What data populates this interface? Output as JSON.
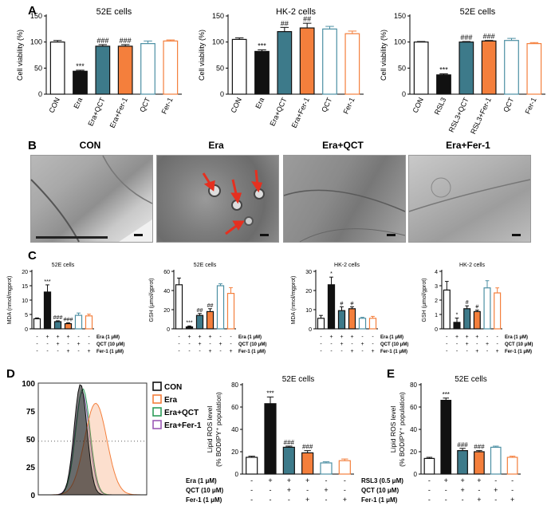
{
  "panel_labels": {
    "A": "A",
    "B": "B",
    "C": "C",
    "D": "D",
    "E": "E"
  },
  "colors": {
    "con": "#ffffff",
    "drug": "#111111",
    "qct": "#3d7a8a",
    "fer1": "#f47f3c",
    "qct_only": "#4c8fa3",
    "fer_only": "#f47f3c"
  },
  "em": {
    "titles": [
      "CON",
      "Era",
      "Era+QCT",
      "Era+Fer-1"
    ]
  },
  "flow": {
    "ylim": [
      0,
      100
    ],
    "yticks": [
      "0",
      "25",
      "50",
      "75",
      "100"
    ],
    "legend": [
      {
        "label": "CON",
        "color": "#111111"
      },
      {
        "label": "Era",
        "color": "#f47f3c"
      },
      {
        "label": "Era+QCT",
        "color": "#2e9c5a"
      },
      {
        "label": "Era+Fer-1",
        "color": "#9b59b6"
      }
    ]
  },
  "chart_data": [
    {
      "id": "A1",
      "type": "bar",
      "title": "52E cells",
      "ylabel": "Cell viability (%)",
      "ylim": [
        0,
        150
      ],
      "yticks": [
        "0",
        "50",
        "100",
        "150"
      ],
      "categories": [
        "CON",
        "Era",
        "Era+QCT",
        "Era+Fer-1",
        "QCT",
        "Fer-1"
      ],
      "values": [
        100,
        44,
        92,
        92,
        97,
        102
      ],
      "errors": [
        3,
        2,
        3,
        3,
        5,
        2
      ],
      "annotations": [
        "",
        "***",
        "###",
        "###",
        "",
        ""
      ]
    },
    {
      "id": "A2",
      "type": "bar",
      "title": "HK-2 cells",
      "ylabel": "Cell viability (%)",
      "ylim": [
        0,
        150
      ],
      "yticks": [
        "0",
        "50",
        "100",
        "150"
      ],
      "categories": [
        "CON",
        "Era",
        "Era+QCT",
        "Era+Fer-1",
        "QCT",
        "Fer-1"
      ],
      "values": [
        105,
        82,
        120,
        127,
        125,
        116
      ],
      "errors": [
        3,
        3,
        8,
        9,
        5,
        5
      ],
      "annotations": [
        "",
        "***",
        "##",
        "##",
        "",
        ""
      ]
    },
    {
      "id": "A3",
      "type": "bar",
      "title": "52E cells",
      "ylabel": "Cell viability (%)",
      "ylim": [
        0,
        150
      ],
      "yticks": [
        "0",
        "50",
        "100",
        "150"
      ],
      "categories": [
        "CON",
        "RSL3",
        "RSL3+QCT",
        "RSL3+Fer-1",
        "QCT",
        "Fer-1"
      ],
      "values": [
        100,
        37,
        100,
        102,
        103,
        97
      ],
      "errors": [
        1,
        2,
        1,
        1,
        4,
        2
      ],
      "annotations": [
        "",
        "***",
        "###",
        "###",
        "",
        ""
      ]
    },
    {
      "id": "C1",
      "type": "bar",
      "title": "52E cells",
      "ylabel": "MDA (nmol/mgprot)",
      "ylim": [
        0,
        20
      ],
      "yticks": [
        "0",
        "5",
        "10",
        "15",
        "20"
      ],
      "values": [
        3.5,
        12.8,
        2.5,
        1.8,
        4.7,
        4.5
      ],
      "errors": [
        0.3,
        2.5,
        0.3,
        0.3,
        0.8,
        0.6
      ],
      "annotations": [
        "",
        "***",
        "###",
        "###",
        "",
        ""
      ]
    },
    {
      "id": "C2",
      "type": "bar",
      "title": "52E cells",
      "ylabel": "GSH (μmol/gprot)",
      "ylim": [
        0,
        60
      ],
      "yticks": [
        "0",
        "20",
        "40",
        "60"
      ],
      "values": [
        46,
        2,
        14,
        18,
        45,
        37
      ],
      "errors": [
        7,
        1,
        2,
        3,
        2,
        6
      ],
      "annotations": [
        "",
        "***",
        "##",
        "##",
        "",
        ""
      ]
    },
    {
      "id": "C3",
      "type": "bar",
      "title": "HK-2 cells",
      "ylabel": "MDA (nmol/mgprot)",
      "ylim": [
        0,
        30
      ],
      "yticks": [
        "0",
        "10",
        "20",
        "30"
      ],
      "values": [
        5.5,
        23,
        9.5,
        10.5,
        5.5,
        5.5
      ],
      "errors": [
        1.5,
        4,
        2,
        1,
        0.5,
        1
      ],
      "annotations": [
        "",
        "*",
        "#",
        "#",
        "",
        ""
      ]
    },
    {
      "id": "C4",
      "type": "bar",
      "title": "HK-2 cells",
      "ylabel": "GSH (μmol/gprot)",
      "ylim": [
        0,
        4
      ],
      "yticks": [
        "0",
        "1",
        "2",
        "3",
        "4"
      ],
      "values": [
        2.7,
        0.45,
        1.4,
        1.2,
        2.85,
        2.5
      ],
      "errors": [
        0.6,
        0.3,
        0.2,
        0.1,
        0.5,
        0.35
      ],
      "annotations": [
        "",
        "*",
        "#",
        "#",
        "",
        ""
      ]
    },
    {
      "id": "D",
      "type": "bar",
      "title": "52E cells",
      "ylabel": "Lipid ROS level",
      "ylabel2": "(% BODIPY⁺ population)",
      "ylim": [
        0,
        80
      ],
      "yticks": [
        "0",
        "20",
        "40",
        "60",
        "80"
      ],
      "values": [
        15,
        63,
        24,
        19,
        10,
        12
      ],
      "errors": [
        1,
        6,
        1,
        2,
        1,
        1.5
      ],
      "annotations": [
        "",
        "***",
        "###",
        "###",
        "",
        ""
      ]
    },
    {
      "id": "E",
      "type": "bar",
      "title": "52E cells",
      "ylabel": "Lipid ROS level",
      "ylabel2": "(% BODIPY⁺ population)",
      "ylim": [
        0,
        80
      ],
      "yticks": [
        "0",
        "20",
        "40",
        "60",
        "80"
      ],
      "values": [
        14,
        66,
        21,
        20,
        24,
        15
      ],
      "errors": [
        1,
        2,
        2,
        1,
        1,
        1
      ],
      "annotations": [
        "",
        "***",
        "###",
        "###",
        "",
        ""
      ]
    }
  ],
  "treat": {
    "C": {
      "rows": [
        {
          "label": "Era (1 μM)",
          "marks": [
            "-",
            "+",
            "+",
            "+",
            "-",
            "-"
          ]
        },
        {
          "label": "QCT (10 μM)",
          "marks": [
            "-",
            "-",
            "+",
            "-",
            "+",
            "-"
          ]
        },
        {
          "label": "Fer-1 (1 μM)",
          "marks": [
            "-",
            "-",
            "-",
            "+",
            "-",
            "+"
          ]
        }
      ]
    },
    "D": {
      "rows": [
        {
          "label": "Era (1 μM)",
          "marks": [
            "-",
            "+",
            "+",
            "+",
            "-",
            "-"
          ]
        },
        {
          "label": "QCT (10 μM)",
          "marks": [
            "-",
            "-",
            "+",
            "-",
            "+",
            "-"
          ]
        },
        {
          "label": "Fer-1 (1 μM)",
          "marks": [
            "-",
            "-",
            "-",
            "+",
            "-",
            "+"
          ]
        }
      ]
    },
    "E": {
      "rows": [
        {
          "label": "RSL3 (0.5 μM)",
          "marks": [
            "-",
            "+",
            "+",
            "+",
            "-",
            "-"
          ]
        },
        {
          "label": "QCT (10 μM)",
          "marks": [
            "-",
            "-",
            "+",
            "-",
            "+",
            "-"
          ]
        },
        {
          "label": "Fer-1 (1 μM)",
          "marks": [
            "-",
            "-",
            "-",
            "+",
            "-",
            "+"
          ]
        }
      ]
    }
  }
}
